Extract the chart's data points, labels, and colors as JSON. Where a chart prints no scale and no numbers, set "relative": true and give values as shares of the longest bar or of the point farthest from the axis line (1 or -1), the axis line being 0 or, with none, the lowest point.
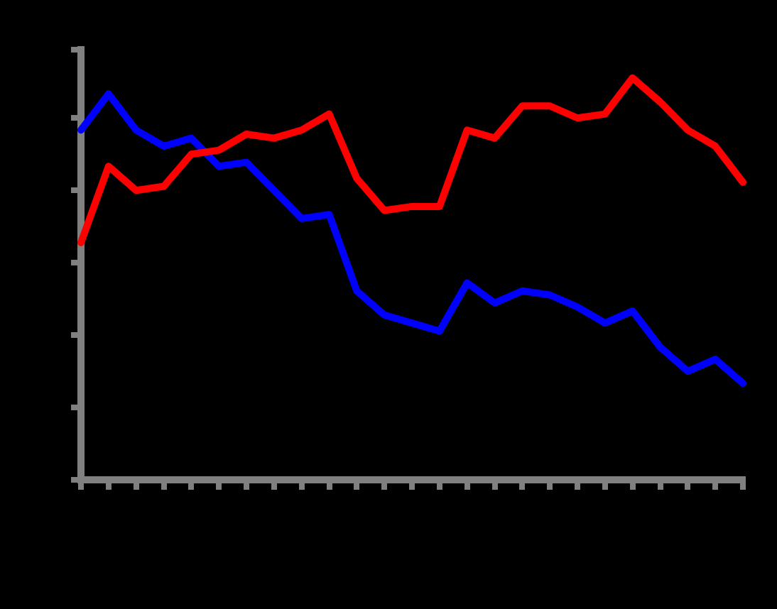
{
  "chart_data": {
    "type": "line",
    "relative": true,
    "grid": false,
    "legend": false,
    "marker": "none",
    "line_style": "solid",
    "tick_labels": false,
    "categories": [
      null,
      null,
      null,
      null,
      null,
      null,
      null,
      null,
      null,
      null,
      null,
      null,
      null,
      null,
      null,
      null,
      null,
      null,
      null,
      null,
      null,
      null,
      null,
      null,
      null
    ],
    "series": [
      {
        "color": "#ff0000",
        "values": [
          0.59,
          0.78,
          0.72,
          0.73,
          0.81,
          0.82,
          0.86,
          0.85,
          0.87,
          0.91,
          0.75,
          0.67,
          0.68,
          0.68,
          0.87,
          0.85,
          0.93,
          0.93,
          0.9,
          0.91,
          1.0,
          0.94,
          0.87,
          0.83,
          0.74
        ]
      },
      {
        "color": "#0000ff",
        "values": [
          0.87,
          0.96,
          0.87,
          0.83,
          0.85,
          0.78,
          0.79,
          0.72,
          0.65,
          0.66,
          0.47,
          0.41,
          0.39,
          0.37,
          0.49,
          0.44,
          0.47,
          0.46,
          0.43,
          0.39,
          0.42,
          0.33,
          0.27,
          0.3,
          0.24
        ]
      }
    ]
  }
}
